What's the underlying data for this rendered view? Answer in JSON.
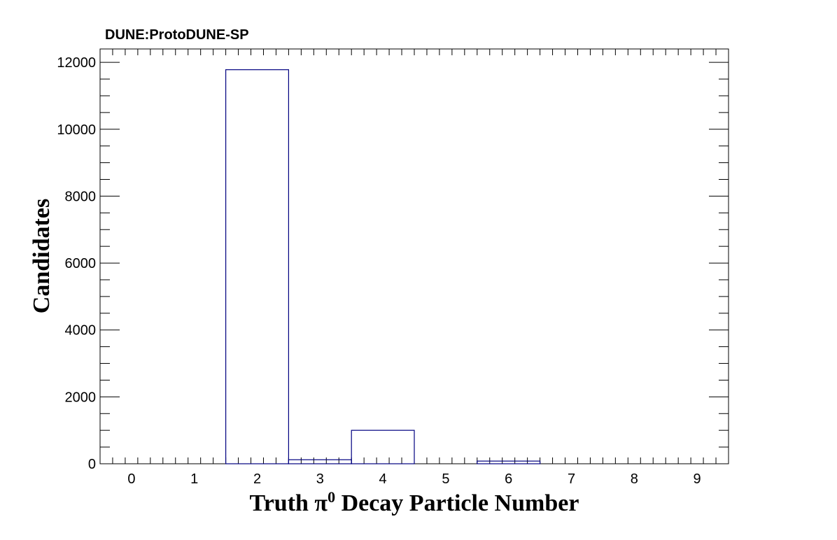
{
  "chart_data": {
    "type": "bar",
    "title": "DUNE:ProtoDUNE-SP",
    "xlabel": {
      "pre": "Truth  π",
      "sup": "0",
      "post": " Decay Particle Number"
    },
    "ylabel": "Candidates",
    "x_range": [
      -0.5,
      9.5
    ],
    "ylim": [
      0,
      12400
    ],
    "x_ticks": [
      0,
      1,
      2,
      3,
      4,
      5,
      6,
      7,
      8,
      9
    ],
    "y_ticks": [
      0,
      2000,
      4000,
      6000,
      8000,
      10000,
      12000
    ],
    "y_minor_step": 500,
    "bins": [
      0,
      1,
      2,
      3,
      4,
      5,
      6,
      7,
      8,
      9
    ],
    "values": [
      0,
      0,
      11780,
      120,
      1000,
      0,
      80,
      0,
      0,
      0
    ],
    "grid": false,
    "legend": "none",
    "colors": {
      "histogram": "#000080",
      "axis": "#000000"
    }
  }
}
